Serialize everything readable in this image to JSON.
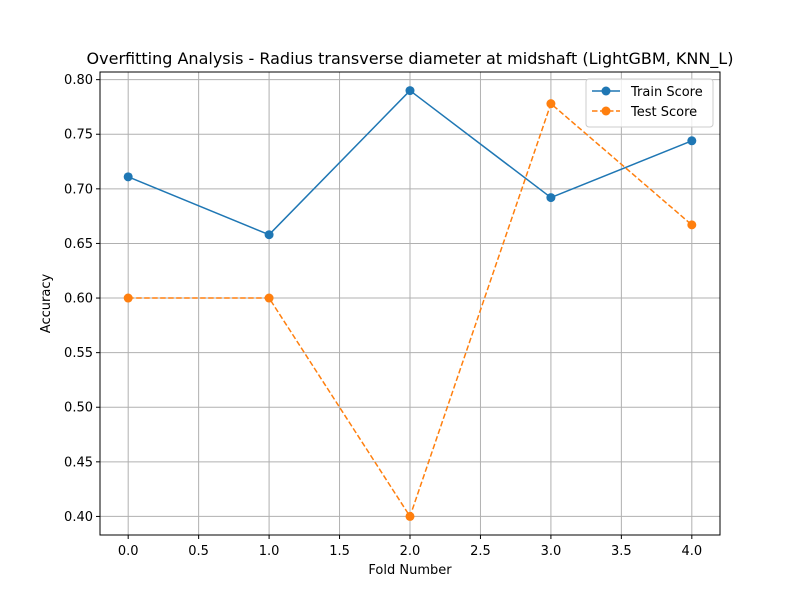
{
  "chart_data": {
    "type": "line",
    "title": "Overfitting Analysis - Radius transverse diameter at midshaft (LightGBM, KNN_L)",
    "xlabel": "Fold Number",
    "ylabel": "Accuracy",
    "x": [
      0,
      1,
      2,
      3,
      4
    ],
    "xlim": [
      -0.2,
      4.2
    ],
    "ylim": [
      0.383,
      0.807
    ],
    "xticks": [
      0.0,
      0.5,
      1.0,
      1.5,
      2.0,
      2.5,
      3.0,
      3.5,
      4.0
    ],
    "xtick_labels": [
      "0.0",
      "0.5",
      "1.0",
      "1.5",
      "2.0",
      "2.5",
      "3.0",
      "3.5",
      "4.0"
    ],
    "yticks": [
      0.4,
      0.45,
      0.5,
      0.55,
      0.6,
      0.65,
      0.7,
      0.75,
      0.8
    ],
    "ytick_labels": [
      "0.40",
      "0.45",
      "0.50",
      "0.55",
      "0.60",
      "0.65",
      "0.70",
      "0.75",
      "0.80"
    ],
    "grid": true,
    "legend_position": "top-right",
    "series": [
      {
        "name": "Train Score",
        "values": [
          0.711,
          0.658,
          0.79,
          0.692,
          0.744
        ],
        "color": "#1f77b4",
        "style": "solid"
      },
      {
        "name": "Test Score",
        "values": [
          0.6,
          0.6,
          0.4,
          0.778,
          0.667
        ],
        "color": "#ff7f0e",
        "style": "dashed"
      }
    ]
  }
}
